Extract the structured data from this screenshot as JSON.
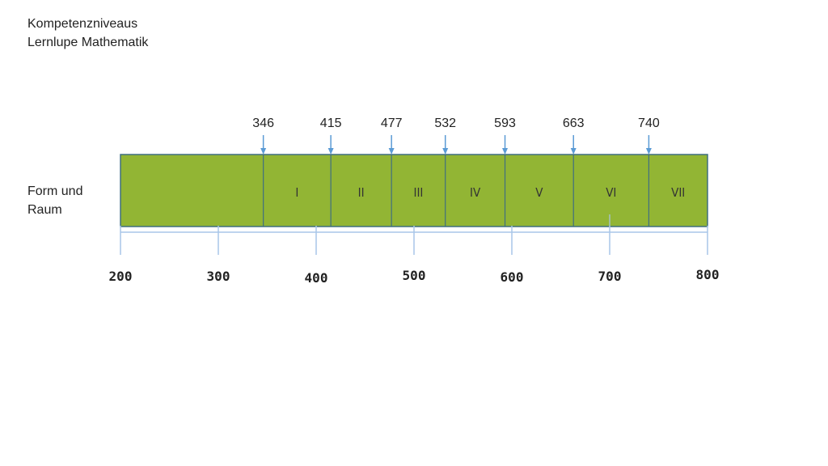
{
  "title": {
    "line1": "Kompetenzniveaus",
    "line2": "Lernlupe Mathematik"
  },
  "row_label": {
    "line1": "Form und",
    "line2": "Raum"
  },
  "colors": {
    "bar_fill": "#92b534",
    "bar_stroke": "#3f6f80",
    "axis": "#a9c6e8",
    "arrow": "#5b9bd5"
  },
  "chart_data": {
    "type": "bar",
    "orientation": "horizontal",
    "xlim": [
      200,
      800
    ],
    "x_ticks": [
      200,
      300,
      400,
      500,
      600,
      700,
      800
    ],
    "thresholds": [
      346,
      415,
      477,
      532,
      593,
      663,
      740
    ],
    "levels": [
      "I",
      "II",
      "III",
      "IV",
      "V",
      "VI",
      "VII"
    ],
    "bar_start": 200,
    "bar_end": 800
  }
}
